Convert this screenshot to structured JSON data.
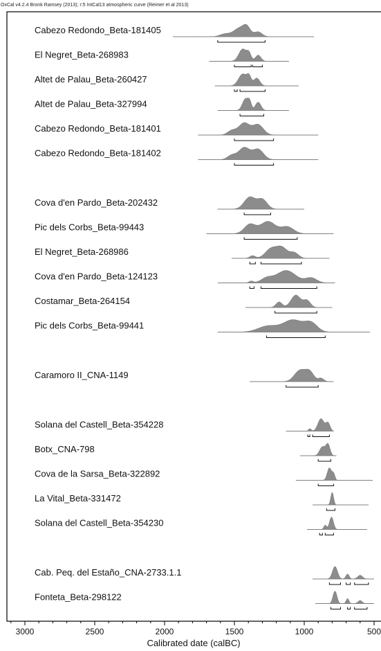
{
  "chart_data": {
    "type": "oxcal-multiplot",
    "header": "OxCal v4.2.4 Bronk Ramsey (2013); r:5 IntCal13 atmospheric curve (Reimer et al 2013)",
    "xlabel": "Calibrated date (calBC)",
    "xlim": [
      3100,
      500
    ],
    "xticks": [
      3000,
      2500,
      2000,
      1500,
      1000,
      500
    ],
    "groups": [
      {
        "samples": [
          {
            "label": "Cabezo Redondo_Beta-181405",
            "range": [
              1940,
              930
            ],
            "peaks": [
              [
                1570,
                0.3,
                35
              ],
              [
                1460,
                1,
                45
              ],
              [
                1410,
                0.8,
                25
              ],
              [
                1330,
                0.55,
                28
              ]
            ],
            "hpd": [
              [
                1620,
                1280
              ]
            ]
          },
          {
            "label": "El Negret_Beta-268983",
            "range": [
              1680,
              1110
            ],
            "peaks": [
              [
                1440,
                1,
                28
              ],
              [
                1395,
                0.55,
                15
              ],
              [
                1330,
                0.5,
                20
              ]
            ],
            "hpd": [
              [
                1500,
                1380
              ],
              [
                1370,
                1300
              ]
            ]
          },
          {
            "label": "Altet de Palau_Beta-260427",
            "range": [
              1640,
              1040
            ],
            "peaks": [
              [
                1440,
                1,
                30
              ],
              [
                1395,
                0.65,
                15
              ],
              [
                1340,
                0.65,
                22
              ]
            ],
            "hpd": [
              [
                1500,
                1480
              ],
              [
                1460,
                1280
              ]
            ]
          },
          {
            "label": "Altet de Palau_Beta-327994",
            "range": [
              1620,
              1110
            ],
            "peaks": [
              [
                1420,
                1,
                22
              ],
              [
                1390,
                0.55,
                12
              ],
              [
                1330,
                0.7,
                20
              ]
            ],
            "hpd": [
              [
                1460,
                1290
              ]
            ]
          },
          {
            "label": "Cabezo Redondo_Beta-181401",
            "range": [
              1760,
              900
            ],
            "peaks": [
              [
                1520,
                0.35,
                30
              ],
              [
                1430,
                1,
                40
              ],
              [
                1330,
                0.85,
                38
              ]
            ],
            "hpd": [
              [
                1500,
                1220
              ]
            ]
          },
          {
            "label": "Cabezo Redondo_Beta-181402",
            "range": [
              1760,
              900
            ],
            "peaks": [
              [
                1520,
                0.35,
                30
              ],
              [
                1430,
                1,
                40
              ],
              [
                1330,
                0.85,
                38
              ]
            ],
            "hpd": [
              [
                1500,
                1220
              ]
            ]
          }
        ]
      },
      {
        "samples": [
          {
            "label": "Cova d'en Pardo_Beta-202432",
            "range": [
              1620,
              1000
            ],
            "peaks": [
              [
                1390,
                1,
                40
              ],
              [
                1300,
                0.8,
                35
              ]
            ],
            "hpd": [
              [
                1430,
                1240
              ]
            ]
          },
          {
            "label": "Pic dels Corbs_Beta-99443",
            "range": [
              1700,
              790
            ],
            "peaks": [
              [
                1390,
                0.75,
                40
              ],
              [
                1260,
                1,
                55
              ],
              [
                1120,
                0.55,
                45
              ]
            ],
            "hpd": [
              [
                1430,
                1050
              ]
            ]
          },
          {
            "label": "El Negret_Beta-268986",
            "range": [
              1520,
              820
            ],
            "peaks": [
              [
                1370,
                0.25,
                20
              ],
              [
                1240,
                0.85,
                40
              ],
              [
                1160,
                1,
                40
              ],
              [
                1070,
                0.5,
                30
              ]
            ],
            "hpd": [
              [
                1390,
                1350
              ],
              [
                1310,
                1020
              ]
            ]
          },
          {
            "label": "Cova d'en Pardo_Beta-124123",
            "range": [
              1620,
              780
            ],
            "peaks": [
              [
                1380,
                0.15,
                15
              ],
              [
                1270,
                0.35,
                40
              ],
              [
                1130,
                1,
                70
              ],
              [
                950,
                0.4,
                40
              ]
            ],
            "hpd": [
              [
                1390,
                1360
              ],
              [
                1310,
                910
              ]
            ]
          },
          {
            "label": "Costamar_Beta-264154",
            "range": [
              1420,
              800
            ],
            "peaks": [
              [
                1180,
                0.45,
                22
              ],
              [
                1060,
                1,
                35
              ],
              [
                980,
                0.55,
                25
              ]
            ],
            "hpd": [
              [
                1210,
                910
              ]
            ]
          },
          {
            "label": "Pic dels Corbs_Beta-99441",
            "range": [
              1620,
              530
            ],
            "peaks": [
              [
                1260,
                0.5,
                70
              ],
              [
                1080,
                1,
                70
              ],
              [
                950,
                0.7,
                45
              ]
            ],
            "hpd": [
              [
                1270,
                850
              ]
            ]
          }
        ]
      },
      {
        "samples": [
          {
            "label": "Caramoro II_CNA-1149",
            "range": [
              1390,
              790
            ],
            "peaks": [
              [
                1030,
                1,
                40
              ],
              [
                960,
                0.8,
                30
              ],
              [
                880,
                0.3,
                20
              ]
            ],
            "hpd": [
              [
                1130,
                900
              ]
            ]
          }
        ]
      },
      {
        "samples": [
          {
            "label": "Solana del Castell_Beta-354228",
            "range": [
              1130,
              790
            ],
            "peaks": [
              [
                880,
                1,
                22
              ],
              [
                830,
                0.65,
                15
              ],
              [
                960,
                0.2,
                10
              ]
            ],
            "hpd": [
              [
                975,
                960
              ],
              [
                940,
                820
              ]
            ]
          },
          {
            "label": "Botx_CNA-798",
            "range": [
              1030,
              770
            ],
            "peaks": [
              [
                870,
                0.8,
                20
              ],
              [
                830,
                1,
                15
              ]
            ],
            "hpd": [
              [
                900,
                810
              ]
            ]
          },
          {
            "label": "Cova de la Sarsa_Beta-322892",
            "range": [
              1060,
              510
            ],
            "peaks": [
              [
                820,
                1,
                15
              ],
              [
                790,
                0.5,
                10
              ]
            ],
            "hpd": [
              [
                900,
                790
              ]
            ]
          },
          {
            "label": "La Vital_Beta-331472",
            "range": [
              940,
              540
            ],
            "peaks": [
              [
                800,
                1,
                10
              ]
            ],
            "hpd": [
              [
                840,
                780
              ]
            ]
          },
          {
            "label": "Solana del Castell_Beta-354230",
            "range": [
              980,
              550
            ],
            "peaks": [
              [
                805,
                1,
                14
              ],
              [
                850,
                0.35,
                10
              ]
            ],
            "hpd": [
              [
                890,
                870
              ],
              [
                850,
                790
              ]
            ]
          }
        ]
      },
      {
        "samples": [
          {
            "label": "Cab. Peq. del Estaño_CNA-2733.1.1",
            "range": [
              940,
              500
            ],
            "peaks": [
              [
                780,
                1,
                18
              ],
              [
                690,
                0.4,
                12
              ],
              [
                600,
                0.3,
                18
              ]
            ],
            "hpd": [
              [
                820,
                740
              ],
              [
                700,
                670
              ],
              [
                640,
                540
              ]
            ]
          },
          {
            "label": "Fonteta_Beta-298122",
            "range": [
              920,
              500
            ],
            "peaks": [
              [
                780,
                1,
                14
              ],
              [
                690,
                0.4,
                10
              ],
              [
                600,
                0.25,
                15
              ]
            ],
            "hpd": [
              [
                810,
                740
              ],
              [
                690,
                670
              ],
              [
                640,
                550
              ]
            ]
          }
        ]
      }
    ]
  }
}
